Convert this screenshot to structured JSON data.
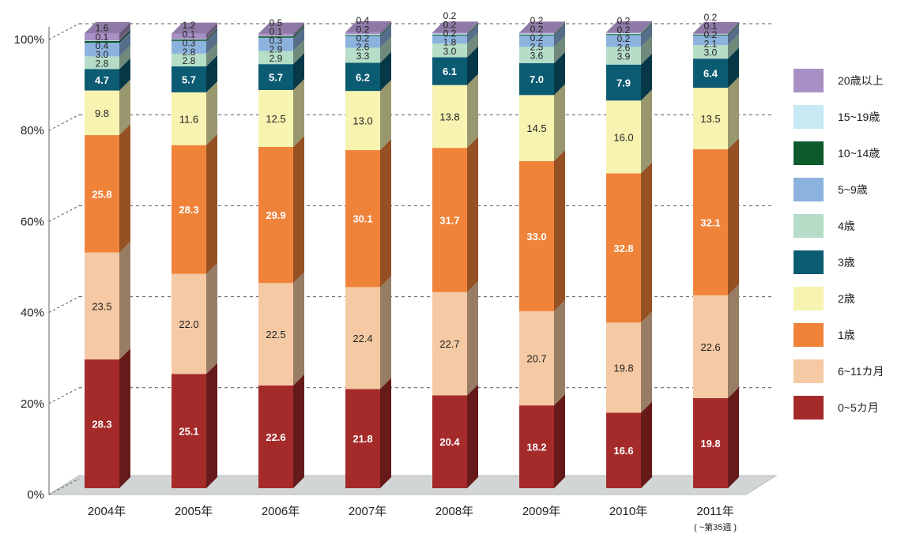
{
  "chart_data": {
    "type": "bar",
    "stacked": true,
    "percent_stacked": true,
    "categories": [
      "2004年",
      "2005年",
      "2006年",
      "2007年",
      "2008年",
      "2009年",
      "2010年",
      "2011年"
    ],
    "category_notes": [
      "",
      "",
      "",
      "",
      "",
      "",
      "",
      "( ~第35週 )"
    ],
    "yticks": [
      "0%",
      "20%",
      "40%",
      "60%",
      "80%",
      "100%"
    ],
    "ylim": [
      0,
      100
    ],
    "grid": "dashed",
    "legend_position": "right",
    "series": [
      {
        "name": "0~5カ月",
        "color": "#a52a2a",
        "label_color": "#ffffff",
        "values": [
          28.3,
          25.1,
          22.6,
          21.8,
          20.4,
          18.2,
          16.6,
          19.8
        ]
      },
      {
        "name": "6~11カ月",
        "color": "#f5c9a3",
        "label_color": "#222222",
        "values": [
          23.5,
          22.0,
          22.5,
          22.4,
          22.7,
          20.7,
          19.8,
          22.6
        ]
      },
      {
        "name": "1歳",
        "color": "#f0833a",
        "label_color": "#ffffff",
        "values": [
          25.8,
          28.3,
          29.9,
          30.1,
          31.7,
          33.0,
          32.8,
          32.1
        ]
      },
      {
        "name": "2歳",
        "color": "#f7f3b1",
        "label_color": "#222222",
        "values": [
          9.8,
          11.6,
          12.5,
          13.0,
          13.8,
          14.5,
          16.0,
          13.5
        ]
      },
      {
        "name": "3歳",
        "color": "#0b5b72",
        "label_color": "#ffffff",
        "values": [
          4.7,
          5.7,
          5.7,
          6.2,
          6.1,
          7.0,
          7.9,
          6.4
        ]
      },
      {
        "name": "4歳",
        "color": "#b5ddc7",
        "label_color": "#222222",
        "values": [
          2.8,
          2.8,
          2.9,
          3.3,
          3.0,
          3.6,
          3.9,
          3.0
        ]
      },
      {
        "name": "5~9歳",
        "color": "#8cb2de",
        "label_color": "#222222",
        "values": [
          3.0,
          2.8,
          2.9,
          2.6,
          1.8,
          2.5,
          2.6,
          2.1
        ]
      },
      {
        "name": "10~14歳",
        "color": "#0d5a2c",
        "label_color": "#222222",
        "values": [
          0.4,
          0.3,
          0.3,
          0.2,
          0.2,
          0.2,
          0.2,
          0.2
        ]
      },
      {
        "name": "15~19歳",
        "color": "#c6e9f3",
        "label_color": "#222222",
        "values": [
          0.1,
          0.1,
          0.1,
          0.2,
          0.2,
          0.2,
          0.2,
          0.1
        ]
      },
      {
        "name": "20歳以上",
        "color": "#a890c5",
        "label_color": "#222222",
        "values": [
          1.6,
          1.2,
          0.5,
          0.4,
          0.2,
          0.2,
          0.2,
          0.2
        ]
      }
    ]
  }
}
